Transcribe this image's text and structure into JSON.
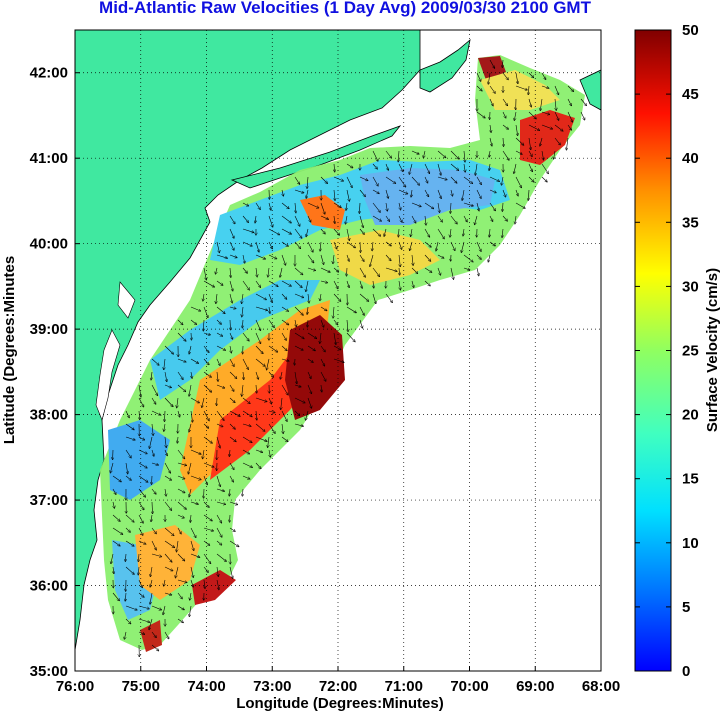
{
  "title": "Mid-Atlantic Raw Velocities (1 Day Avg) 2009/03/30 2100 GMT",
  "map": {
    "xlabel": "Longitude (Degrees:Minutes)",
    "ylabel": "Latitude (Degrees:Minutes",
    "lon_ticks": [
      "76:00",
      "75:00",
      "74:00",
      "73:00",
      "72:00",
      "71:00",
      "70:00",
      "69:00",
      "68:00"
    ],
    "lat_ticks": [
      "42:00",
      "41:00",
      "40:00",
      "39:00",
      "38:00",
      "37:00",
      "36:00",
      "35:00"
    ],
    "lon_range": [
      -76,
      -68
    ],
    "lat_range": [
      35,
      42.5
    ],
    "grid": "dotted",
    "land_color": "#40e8a0",
    "ocean_color": "#ffffff"
  },
  "colorbar": {
    "label": "Surface Velocity (cm/s)",
    "ticks": [
      "0",
      "5",
      "10",
      "15",
      "20",
      "25",
      "30",
      "35",
      "40",
      "45",
      "50"
    ],
    "range": [
      0,
      50
    ],
    "colormap": "jet"
  }
}
